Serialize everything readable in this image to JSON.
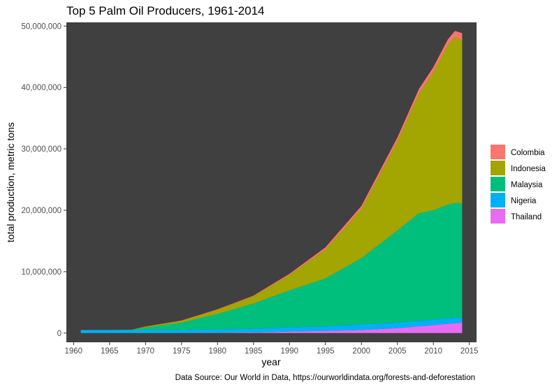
{
  "chart_data": {
    "type": "area",
    "title": "Top 5 Palm Oil Producers, 1961-2014",
    "xlabel": "year",
    "ylabel": "total production, metric tons",
    "caption": "Data Source: Our World in Data, https://ourworldindata.org/forests-and-deforestation",
    "xlim": [
      1959,
      2016
    ],
    "ylim": [
      -1500000,
      50600000
    ],
    "x_ticks": [
      1960,
      1965,
      1970,
      1975,
      1980,
      1985,
      1990,
      1995,
      2000,
      2005,
      2010,
      2015
    ],
    "x_tick_labels": [
      "1960",
      "1965",
      "1970",
      "1975",
      "1980",
      "1985",
      "1990",
      "1995",
      "2000",
      "2005",
      "2010",
      "2015"
    ],
    "y_ticks": [
      0,
      10000000,
      20000000,
      30000000,
      40000000,
      50000000
    ],
    "y_tick_labels": [
      "0",
      "10,000,000",
      "20,000,000",
      "30,000,000",
      "40,000,000",
      "50,000,000"
    ],
    "stacked": true,
    "grid": false,
    "legend_position": "right",
    "x": [
      1961,
      1965,
      1968,
      1970,
      1975,
      1980,
      1985,
      1990,
      1995,
      2000,
      2005,
      2008,
      2010,
      2012,
      2013,
      2014
    ],
    "series": [
      {
        "name": "Thailand",
        "color": "#E76BF3",
        "values": [
          0,
          0,
          0,
          0,
          0,
          50000,
          100000,
          250000,
          350000,
          500000,
          800000,
          1100000,
          1300000,
          1500000,
          1600000,
          1700000
        ]
      },
      {
        "name": "Nigeria",
        "color": "#00B0F6",
        "values": [
          500000,
          500000,
          500000,
          500000,
          500000,
          550000,
          600000,
          700000,
          750000,
          900000,
          900000,
          900000,
          900000,
          900000,
          900000,
          930000
        ]
      },
      {
        "name": "Malaysia",
        "color": "#00BF7D",
        "values": [
          0,
          0,
          50000,
          400000,
          1200000,
          2500000,
          4100000,
          6000000,
          7800000,
          10800000,
          15000000,
          17500000,
          17800000,
          18500000,
          18700000,
          18500000
        ]
      },
      {
        "name": "Indonesia",
        "color": "#A3A500",
        "values": [
          0,
          0,
          0,
          150000,
          300000,
          700000,
          1200000,
          2500000,
          4700000,
          8000000,
          14500000,
          19500000,
          22500000,
          26000000,
          27000000,
          26600000
        ]
      },
      {
        "name": "Colombia",
        "color": "#F8766D",
        "values": [
          0,
          0,
          0,
          20000,
          50000,
          80000,
          100000,
          200000,
          350000,
          500000,
          650000,
          750000,
          800000,
          900000,
          1000000,
          1100000
        ]
      }
    ],
    "legend_order": [
      "Colombia",
      "Indonesia",
      "Malaysia",
      "Nigeria",
      "Thailand"
    ]
  },
  "colors": {
    "panel_background": "#404040",
    "page_background": "#ffffff"
  }
}
